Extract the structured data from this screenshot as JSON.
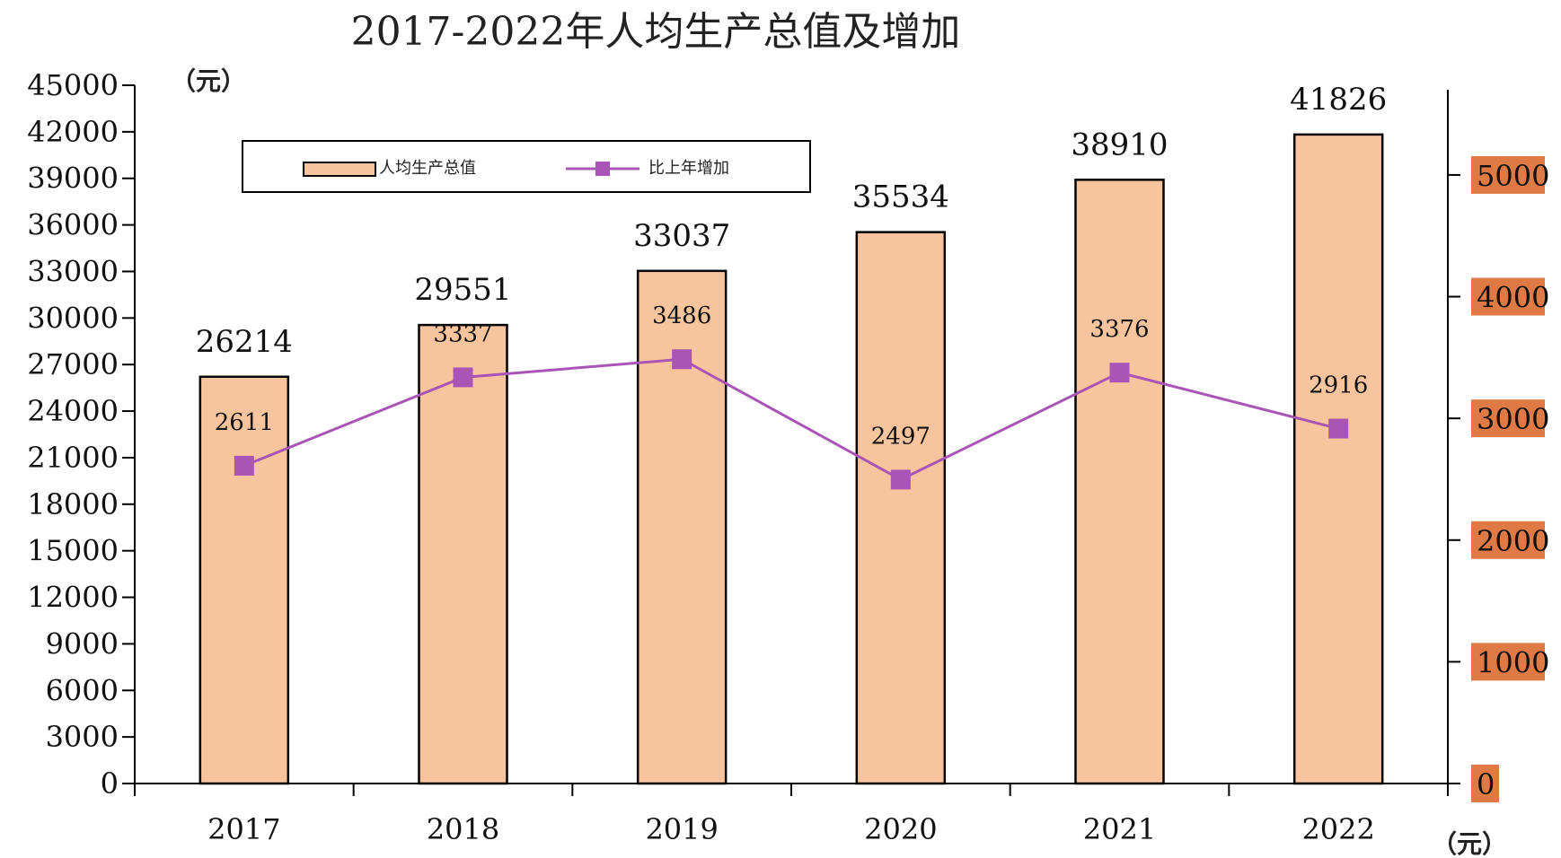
{
  "chart_data": {
    "type": "bar",
    "title": "2017-2022年人均生产总值及增加",
    "categories": [
      "2017",
      "2018",
      "2019",
      "2020",
      "2021",
      "2022"
    ],
    "series": [
      {
        "name": "人均生产总值",
        "type": "bar",
        "axis": "left",
        "values": [
          26214,
          29551,
          33037,
          35534,
          38910,
          41826
        ],
        "data_labels": [
          "26214",
          "29551",
          "33037",
          "35534",
          "38910",
          "41826"
        ]
      },
      {
        "name": "比上年增加",
        "type": "line",
        "axis": "right",
        "values": [
          2611,
          3337,
          3486,
          2497,
          3376,
          2916
        ],
        "data_labels": [
          "2611",
          "3337",
          "3486",
          "2497",
          "3376",
          "2916"
        ]
      }
    ],
    "y_left": {
      "unit_label": "（元）",
      "ylim": [
        0,
        45000
      ],
      "ticks": [
        "0",
        "3000",
        "6000",
        "9000",
        "12000",
        "15000",
        "18000",
        "21000",
        "24000",
        "27000",
        "30000",
        "33000",
        "36000",
        "39000",
        "42000",
        "45000"
      ]
    },
    "y_right": {
      "unit_label": "（元）",
      "ylim": [
        0,
        5700
      ],
      "ticks": [
        "0",
        "1000",
        "2000",
        "3000",
        "4000",
        "5000"
      ]
    },
    "legend_position": "top-left",
    "grid": false
  },
  "colors": {
    "bar_fill": "#F8C49D",
    "bar_stroke": "#000000",
    "line_stroke": "#A955B6",
    "marker_fill": "#A955B6",
    "right_tick_bg": "#E07A45",
    "text": "#111111"
  }
}
